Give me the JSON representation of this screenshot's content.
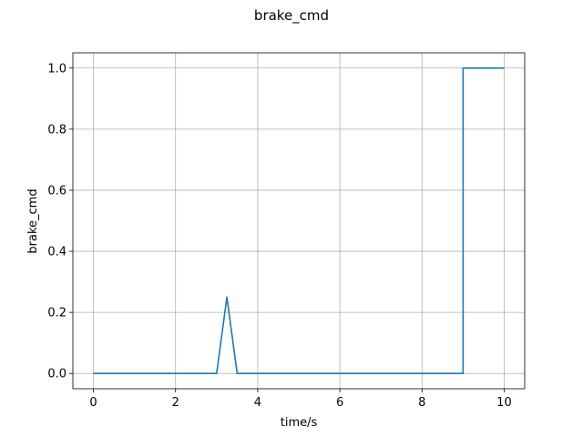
{
  "chart_data": {
    "type": "line",
    "title": "brake_cmd",
    "xlabel": "time/s",
    "ylabel": "brake_cmd",
    "xlim": [
      -0.5,
      10.5
    ],
    "ylim": [
      -0.05,
      1.05
    ],
    "xticks": [
      0,
      2,
      4,
      6,
      8,
      10
    ],
    "yticks": [
      0.0,
      0.2,
      0.4,
      0.6,
      0.8,
      1.0
    ],
    "xtick_labels": [
      "0",
      "2",
      "4",
      "6",
      "8",
      "10"
    ],
    "ytick_labels": [
      "0.0",
      "0.2",
      "0.4",
      "0.6",
      "0.8",
      "1.0"
    ],
    "grid": true,
    "series": [
      {
        "color": "#1f77b4",
        "x": [
          0,
          3.0,
          3.25,
          3.5,
          9.0,
          9.0,
          10.0
        ],
        "y": [
          0,
          0,
          0.25,
          0,
          0,
          1.0,
          1.0
        ]
      }
    ]
  }
}
